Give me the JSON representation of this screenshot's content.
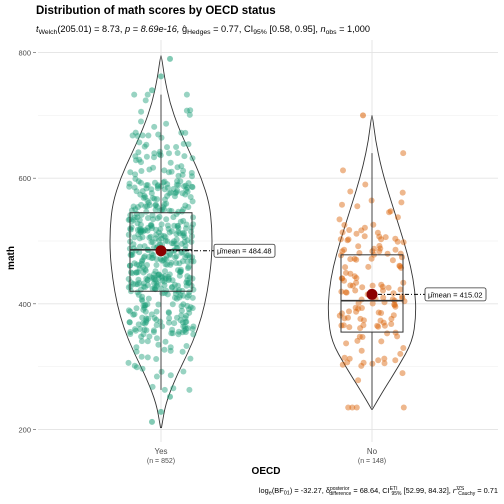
{
  "chart_data": {
    "type": "violin-box-scatter",
    "title": "Distribution of math scores by OECD status",
    "subtitle": {
      "test": "t",
      "test_sub": "Welch",
      "df": "(205.01) = 8.73, ",
      "p": "p = 8.69e-16, ",
      "es_symbol": "ĝ",
      "es_sub": "Hedges",
      "es_value": " = 0.77, ",
      "ci_label": "CI",
      "ci_sub": "95%",
      "ci_value": " [0.58, 0.95], ",
      "n_label": "n",
      "n_sub": "obs",
      "n_value": " = 1,000"
    },
    "xlabel": "OECD",
    "ylabel": "math",
    "ylim": [
      180,
      820
    ],
    "yticks": [
      200,
      400,
      600,
      800
    ],
    "grid": true,
    "groups": [
      {
        "label": "Yes",
        "n_label": "(n = 852)",
        "n": 852,
        "color": "#1b9e77",
        "mean": 484.48,
        "mean_label": "μ̂mean = 484.48",
        "box": {
          "q1": 420,
          "median": 486,
          "q3": 545,
          "lower": 263,
          "upper": 733
        },
        "outliers_low": [
          212,
          228,
          252
        ],
        "outliers_high": [
          740,
          762,
          790
        ],
        "violin": {
          "y": [
            203,
            240,
            280,
            320,
            360,
            400,
            440,
            480,
            520,
            560,
            600,
            640,
            680,
            720,
            760,
            795
          ],
          "half_width": [
            0.006,
            0.05,
            0.16,
            0.3,
            0.42,
            0.5,
            0.55,
            0.58,
            0.58,
            0.55,
            0.46,
            0.33,
            0.2,
            0.1,
            0.04,
            0.005
          ]
        }
      },
      {
        "label": "No",
        "n_label": "(n = 148)",
        "n": 148,
        "color": "#d95f02",
        "mean": 415.02,
        "mean_label": "μ̂mean = 415.02",
        "box": {
          "q1": 355,
          "median": 405,
          "q3": 478,
          "lower": 235,
          "upper": 640
        },
        "outliers_low": [],
        "outliers_high": [
          700
        ],
        "violin": {
          "y": [
            232,
            260,
            300,
            340,
            380,
            420,
            460,
            500,
            540,
            580,
            620,
            660,
            700
          ],
          "half_width": [
            0.005,
            0.12,
            0.3,
            0.46,
            0.5,
            0.49,
            0.44,
            0.36,
            0.27,
            0.18,
            0.1,
            0.04,
            0.005
          ]
        }
      }
    ],
    "caption": {
      "bf": "log",
      "bf_sub": "e",
      "bf_rest": "(BF",
      "bf_sub2": "01",
      "bf_value": ") = -32.27, ",
      "delta": "δ",
      "delta_sup": "posterior",
      "delta_sub": "difference",
      "delta_value": " = 68.64, ",
      "ci": "CI",
      "ci_sup": "ETI",
      "ci_sub": "95%",
      "ci_value": " [52.99, 84.32], ",
      "r": "r",
      "r_sup": "JZS",
      "r_sub": "Cauchy",
      "r_value": " = 0.71"
    }
  }
}
